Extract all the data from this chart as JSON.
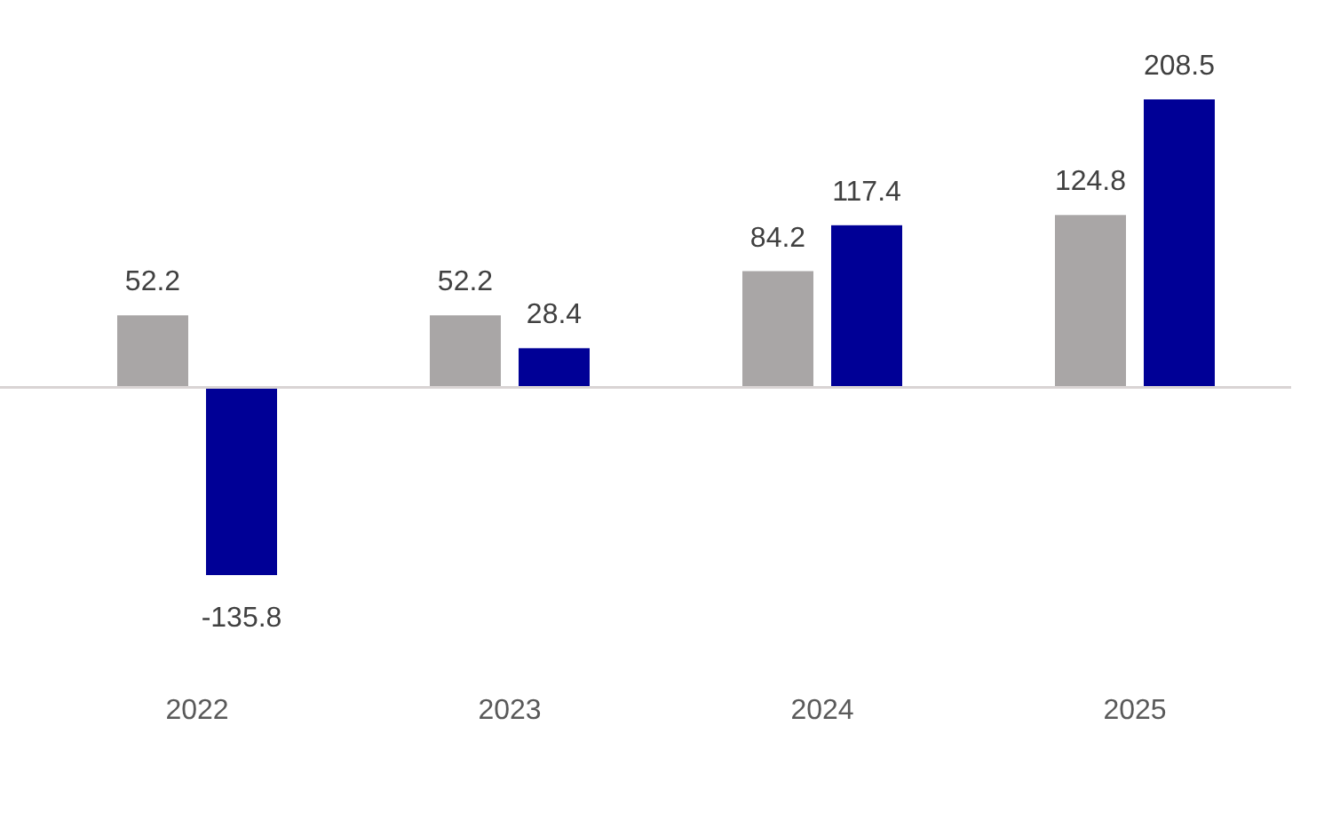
{
  "chart_data": {
    "type": "bar",
    "categories": [
      "2022",
      "2023",
      "2024",
      "2025"
    ],
    "series": [
      {
        "color": "#a9a6a6",
        "values": [
          52.2,
          52.2,
          84.2,
          124.8
        ]
      },
      {
        "color": "#000096",
        "values": [
          -135.8,
          28.4,
          117.4,
          208.5
        ]
      }
    ],
    "data_labels": true,
    "tick_labels": "x"
  }
}
